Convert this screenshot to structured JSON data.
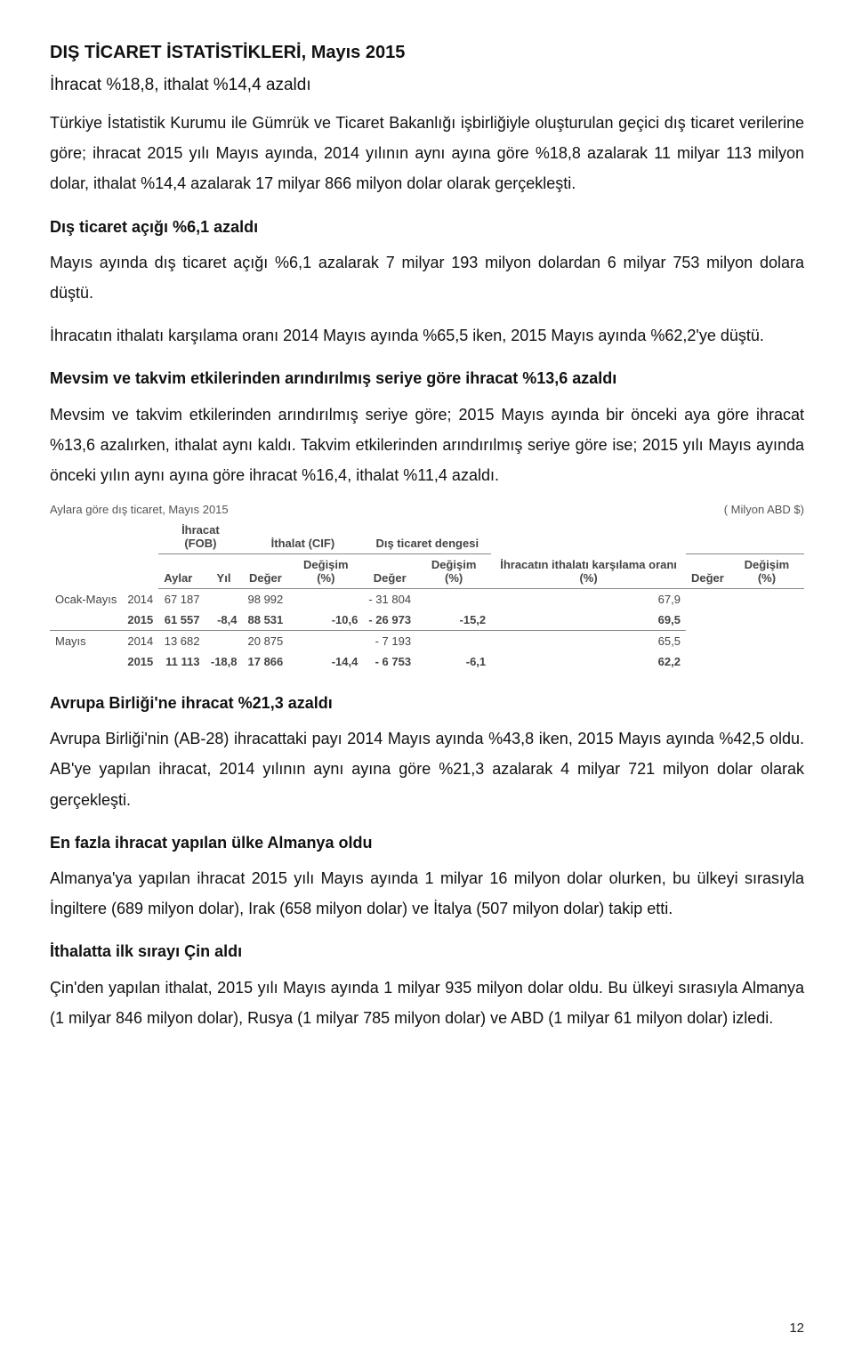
{
  "title": "DIŞ TİCARET İSTATİSTİKLERİ, Mayıs 2015",
  "subtitle": "İhracat %18,8, ithalat %14,4 azaldı",
  "para1": "Türkiye İstatistik Kurumu ile Gümrük ve Ticaret Bakanlığı işbirliğiyle oluşturulan geçici dış ticaret verilerine göre; ihracat 2015 yılı Mayıs ayında, 2014 yılının aynı ayına göre %18,8 azalarak 11 milyar 113 milyon dolar, ithalat %14,4 azalarak 17 milyar 866 milyon dolar olarak gerçekleşti.",
  "h2": "Dış ticaret açığı %6,1 azaldı",
  "para2": "Mayıs ayında dış ticaret açığı %6,1 azalarak 7 milyar 193 milyon dolardan 6 milyar 753 milyon dolara düştü.",
  "para3": "İhracatın ithalatı karşılama oranı 2014 Mayıs ayında %65,5 iken, 2015 Mayıs ayında %62,2'ye düştü.",
  "h3": "Mevsim ve takvim etkilerinden arındırılmış seriye göre ihracat %13,6 azaldı",
  "para4": "Mevsim ve takvim etkilerinden arındırılmış seriye göre; 2015 Mayıs ayında bir önceki aya göre ihracat %13,6 azalırken, ithalat aynı kaldı. Takvim etkilerinden arındırılmış seriye göre ise; 2015 yılı Mayıs ayında önceki yılın aynı ayına göre ihracat %16,4, ithalat %11,4 azaldı.",
  "table": {
    "caption": "Aylara göre dış ticaret, Mayıs 2015",
    "unit": "( Milyon ABD $)",
    "group_headers": [
      "İhracat (FOB)",
      "İthalat (CIF)",
      "Dış ticaret dengesi"
    ],
    "col_headers": {
      "aylar": "Aylar",
      "yil": "Yıl",
      "deger": "Değer",
      "degisim": "Değişim (%)",
      "oran": "İhracatın ithalatı karşılama oranı (%)"
    },
    "rows": [
      {
        "ay": "Ocak-Mayıs",
        "yil": "2014",
        "ihr_d": "67 187",
        "ihr_p": "",
        "ith_d": "98 992",
        "ith_p": "",
        "den_d": "- 31 804",
        "den_p": "",
        "oran": "67,9"
      },
      {
        "ay": "",
        "yil": "2015",
        "ihr_d": "61 557",
        "ihr_p": "-8,4",
        "ith_d": "88 531",
        "ith_p": "-10,6",
        "den_d": "- 26 973",
        "den_p": "-15,2",
        "oran": "69,5"
      },
      {
        "ay": "Mayıs",
        "yil": "2014",
        "ihr_d": "13 682",
        "ihr_p": "",
        "ith_d": "20 875",
        "ith_p": "",
        "den_d": "- 7 193",
        "den_p": "",
        "oran": "65,5"
      },
      {
        "ay": "",
        "yil": "2015",
        "ihr_d": "11 113",
        "ihr_p": "-18,8",
        "ith_d": "17 866",
        "ith_p": "-14,4",
        "den_d": "- 6 753",
        "den_p": "-6,1",
        "oran": "62,2"
      }
    ]
  },
  "h4": "Avrupa Birliği'ne ihracat %21,3 azaldı",
  "para5": "Avrupa Birliği'nin (AB-28) ihracattaki payı 2014 Mayıs ayında %43,8 iken, 2015 Mayıs ayında %42,5 oldu. AB'ye yapılan ihracat, 2014 yılının aynı ayına göre %21,3 azalarak 4 milyar 721 milyon dolar olarak gerçekleşti.",
  "h5": "En fazla ihracat yapılan ülke Almanya oldu",
  "para6": "Almanya'ya yapılan ihracat 2015 yılı Mayıs ayında 1 milyar 16 milyon dolar olurken, bu ülkeyi sırasıyla İngiltere (689 milyon dolar), Irak (658 milyon dolar) ve İtalya (507 milyon dolar) takip etti.",
  "h6": "İthalatta ilk sırayı Çin aldı",
  "para7": "Çin'den yapılan ithalat, 2015 yılı Mayıs ayında 1 milyar 935 milyon dolar oldu. Bu ülkeyi sırasıyla Almanya (1 milyar 846 milyon dolar), Rusya (1 milyar 785 milyon dolar) ve ABD (1 milyar 61 milyon dolar) izledi.",
  "page_number": "12"
}
